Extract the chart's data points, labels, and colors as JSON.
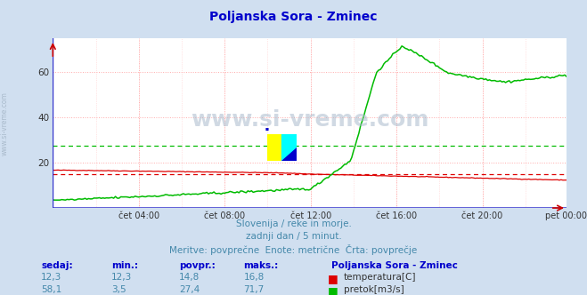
{
  "title": "Poljanska Sora - Zminec",
  "title_color": "#0000cc",
  "bg_color": "#d0dff0",
  "plot_bg_color": "#ffffff",
  "grid_color_v_major": "#ffaaaa",
  "grid_color_v_minor": "#ffe0e0",
  "grid_color_h": "#ffaaaa",
  "subtitle_lines": [
    "Slovenija / reke in morje.",
    "zadnji dan / 5 minut.",
    "Meritve: povprečne  Enote: metrične  Črta: povprečje"
  ],
  "subtitle_color": "#4488aa",
  "watermark": "www.si-vreme.com",
  "watermark_color": "#aabbcc",
  "left_label": "www.si-vreme.com",
  "x_tick_labels": [
    "čet 04:00",
    "čet 08:00",
    "čet 12:00",
    "čet 16:00",
    "čet 20:00",
    "pet 00:00"
  ],
  "x_tick_positions": [
    48,
    96,
    144,
    192,
    240,
    287
  ],
  "ylim": [
    0,
    75
  ],
  "y_ticks": [
    20,
    40,
    60
  ],
  "total_points": 288,
  "temp_color": "#dd0000",
  "flow_color": "#00bb00",
  "temp_avg": 14.8,
  "flow_avg": 27.4,
  "temp_min": 12.3,
  "temp_max": 16.8,
  "flow_min": 3.5,
  "flow_max": 71.7,
  "temp_current": 12.3,
  "flow_current": 58.1,
  "legend_title": "Poljanska Sora - Zminec",
  "legend_temp_label": "temperatura[C]",
  "legend_flow_label": "pretok[m3/s]",
  "table_headers": [
    "sedaj:",
    "min.:",
    "povpr.:",
    "maks.:"
  ],
  "table_color": "#0000cc",
  "logo_yellow": "#ffff00",
  "logo_cyan": "#00ffff",
  "logo_blue": "#0000cc"
}
